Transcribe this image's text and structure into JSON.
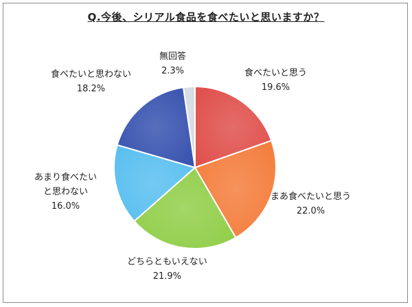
{
  "chart_data": {
    "type": "pie",
    "title": "Q.今後、シリアル食品を食べたいと思いますか？",
    "slices": [
      {
        "label": "食べたいと思う",
        "value": 19.6,
        "value_label": "19.6%",
        "color": "#e0524e"
      },
      {
        "label": "まあ食べたいと思う",
        "value": 22.0,
        "value_label": "22.0%",
        "color": "#f47f3f"
      },
      {
        "label": "どちらともいえない",
        "value": 21.9,
        "value_label": "21.9%",
        "color": "#93cf4c"
      },
      {
        "label_lines": [
          "あまり食べたい",
          "と思わない"
        ],
        "value": 16.0,
        "value_label": "16.0%",
        "color": "#5bc0f0"
      },
      {
        "label": "食べたいと思わない",
        "value": 18.2,
        "value_label": "18.2%",
        "color": "#3a55b0"
      },
      {
        "label": "無回答",
        "value": 2.3,
        "value_label": "2.3%",
        "color": "#d6dbe3"
      }
    ],
    "start": "12 o'clock",
    "direction": "clockwise",
    "legend": "none"
  }
}
